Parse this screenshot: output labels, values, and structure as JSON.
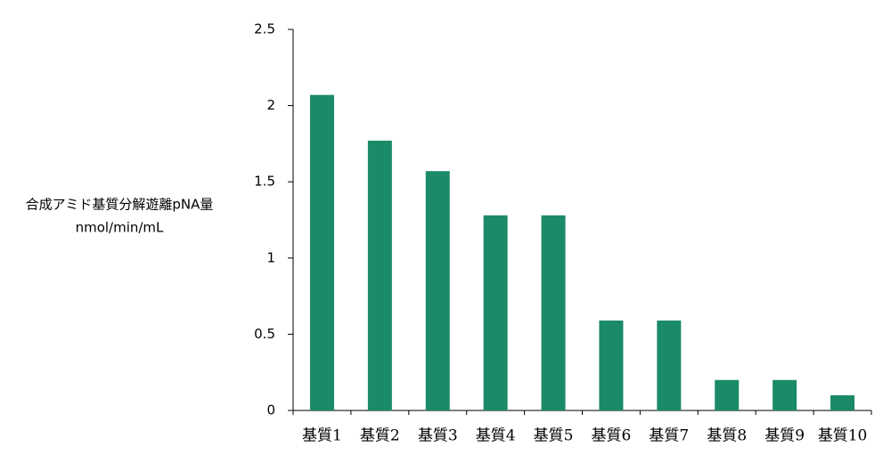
{
  "chart_data": {
    "type": "bar",
    "y_label": [
      "合成アミド基質分解遊離pNA量",
      "nmol/min/mL"
    ],
    "categories": [
      "基質1",
      "基質2",
      "基質3",
      "基質4",
      "基質5",
      "基質6",
      "基質7",
      "基質8",
      "基質9",
      "基質10"
    ],
    "values": [
      2.07,
      1.77,
      1.57,
      1.28,
      1.28,
      0.59,
      0.59,
      0.2,
      0.2,
      0.1
    ],
    "color": "#1a8a68",
    "ylim": [
      0,
      2.5
    ],
    "yticks": [
      0,
      0.5,
      1,
      1.5,
      2,
      2.5
    ],
    "grid": false
  }
}
